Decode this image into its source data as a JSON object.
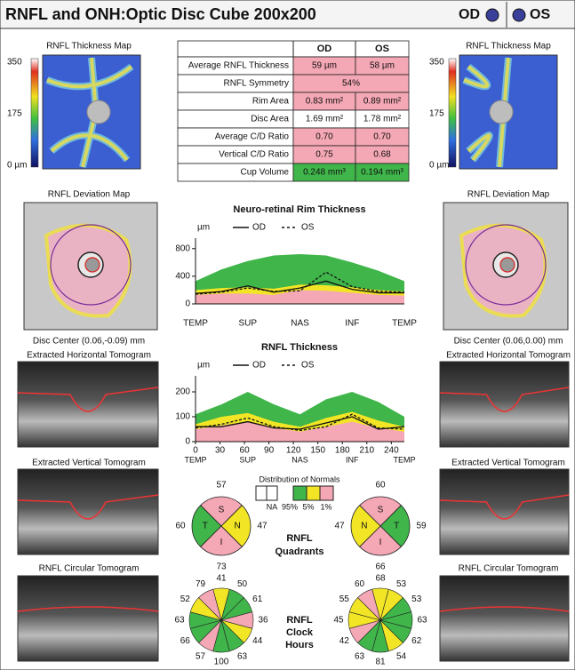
{
  "header": {
    "title": "RNFL and ONH:Optic Disc Cube 200x200",
    "right_eye": "OD",
    "left_eye": "OS"
  },
  "left_panel": {
    "thickness_map_title": "RNFL Thickness Map",
    "scale_labels": [
      "350",
      "175",
      "0 µm"
    ],
    "deviation_map_title": "RNFL Deviation Map",
    "disc_center": "Disc Center (0.06,-0.09) mm",
    "horizontal_tomogram_title": "Extracted Horizontal Tomogram",
    "vertical_tomogram_title": "Extracted Vertical Tomogram",
    "circular_tomogram_title": "RNFL Circular Tomogram"
  },
  "right_panel": {
    "thickness_map_title": "RNFL Thickness Map",
    "scale_labels": [
      "350",
      "175",
      "0 µm"
    ],
    "deviation_map_title": "RNFL Deviation Map",
    "disc_center": "Disc Center (0.06,0.00) mm",
    "horizontal_tomogram_title": "Extracted Horizontal Tomogram",
    "vertical_tomogram_title": "Extracted Vertical Tomogram",
    "circular_tomogram_title": "RNFL Circular Tomogram"
  },
  "table": {
    "columns": [
      "OD",
      "OS"
    ],
    "rows": [
      {
        "label": "Average RNFL Thickness",
        "cells": [
          "59 µm",
          "58 µm"
        ],
        "fills": [
          "#f4a7b4",
          "#f4a7b4"
        ]
      },
      {
        "label": "RNFL Symmetry",
        "cells": [
          "54%"
        ],
        "fills": [
          "#f4a7b4"
        ]
      },
      {
        "label": "Rim Area",
        "cells": [
          "0.83 mm²",
          "0.89 mm²"
        ],
        "fills": [
          "#f4a7b4",
          "#f4a7b4"
        ]
      },
      {
        "label": "Disc Area",
        "cells": [
          "1.69 mm²",
          "1.78 mm²"
        ],
        "fills": [
          "#ffffff",
          "#ffffff"
        ]
      },
      {
        "label": "Average C/D Ratio",
        "cells": [
          "0.70",
          "0.70"
        ],
        "fills": [
          "#f4a7b4",
          "#f4a7b4"
        ]
      },
      {
        "label": "Vertical C/D Ratio",
        "cells": [
          "0.75",
          "0.68"
        ],
        "fills": [
          "#f4a7b4",
          "#f4a7b4"
        ]
      },
      {
        "label": "Cup Volume",
        "cells": [
          "0.248 mm³",
          "0.194 mm³"
        ],
        "fills": [
          "#3fb54a",
          "#3fb54a"
        ]
      }
    ]
  },
  "rim_chart": {
    "title": "Neuro-retinal Rim Thickness",
    "unit": "µm",
    "categories": [
      "TEMP",
      null,
      "SUP",
      null,
      "NAS",
      null,
      "INF",
      null,
      "TEMP"
    ],
    "ylim": [
      0,
      900
    ],
    "yticks": [
      0,
      400,
      800
    ],
    "bands": [
      {
        "color": "#3fb54a",
        "values": [
          330,
          500,
          620,
          700,
          720,
          700,
          600,
          480,
          330
        ]
      },
      {
        "color": "#f2e526",
        "values": [
          200,
          230,
          240,
          220,
          280,
          270,
          240,
          200,
          180
        ]
      },
      {
        "color": "#f4a7b4",
        "values": [
          130,
          150,
          150,
          130,
          200,
          190,
          160,
          130,
          120
        ]
      }
    ],
    "series": [
      {
        "name": "OD",
        "color": "#111111",
        "dashed": false,
        "values": [
          150,
          180,
          260,
          170,
          230,
          330,
          210,
          160,
          160
        ]
      },
      {
        "name": "OS",
        "color": "#111111",
        "dashed": true,
        "values": [
          140,
          170,
          230,
          180,
          190,
          460,
          250,
          180,
          170
        ]
      }
    ]
  },
  "rnfl_chart": {
    "title": "RNFL Thickness",
    "unit": "µm",
    "x": [
      0,
      32,
      64,
      96,
      128,
      160,
      192,
      224,
      256
    ],
    "xlim": [
      0,
      256
    ],
    "xticks": [
      0,
      30,
      60,
      90,
      120,
      150,
      180,
      210,
      240
    ],
    "regions": [
      {
        "value": 0,
        "label": "TEMP"
      },
      {
        "value": 64,
        "label": "SUP"
      },
      {
        "value": 128,
        "label": "NAS"
      },
      {
        "value": 192,
        "label": "INF"
      },
      {
        "value": 256,
        "label": "TEMP"
      }
    ],
    "ylim": [
      0,
      250
    ],
    "yticks": [
      0,
      100,
      200
    ],
    "bands": [
      {
        "color": "#3fb54a",
        "values": [
          110,
          150,
          200,
          150,
          110,
          170,
          200,
          160,
          100
        ]
      },
      {
        "color": "#f2e526",
        "values": [
          70,
          100,
          115,
          80,
          60,
          95,
          120,
          85,
          60
        ]
      },
      {
        "color": "#f4a7b4",
        "values": [
          50,
          65,
          80,
          55,
          40,
          60,
          80,
          55,
          40
        ]
      }
    ],
    "series": [
      {
        "name": "OD",
        "color": "#111111",
        "dashed": false,
        "values": [
          60,
          60,
          80,
          55,
          50,
          75,
          100,
          50,
          60
        ]
      },
      {
        "name": "OS",
        "color": "#111111",
        "dashed": true,
        "values": [
          55,
          70,
          95,
          60,
          45,
          60,
          110,
          55,
          50
        ]
      }
    ]
  },
  "distribution": {
    "title": "Distribution of Normals",
    "items": [
      {
        "label": "NA",
        "color": "#ffffff"
      },
      {
        "label": "95%",
        "color": "#3fb54a"
      },
      {
        "label": "5%",
        "color": "#f2e526"
      },
      {
        "label": "1%",
        "color": "#f4a7b4"
      }
    ]
  },
  "quadrants": {
    "title_lines": [
      "RNFL",
      "Quadrants"
    ],
    "od": [
      {
        "sector": "S",
        "value": 57,
        "color": "#f4a7b4"
      },
      {
        "sector": "N",
        "value": 47,
        "color": "#f2e526"
      },
      {
        "sector": "I",
        "value": 73,
        "color": "#f4a7b4"
      },
      {
        "sector": "T",
        "value": 60,
        "color": "#3fb54a"
      }
    ],
    "os": [
      {
        "sector": "S",
        "value": 60,
        "color": "#f4a7b4"
      },
      {
        "sector": "T",
        "value": 59,
        "color": "#3fb54a"
      },
      {
        "sector": "I",
        "value": 66,
        "color": "#f4a7b4"
      },
      {
        "sector": "N",
        "value": 47,
        "color": "#f2e526"
      }
    ]
  },
  "clock_hours": {
    "title_lines": [
      "RNFL",
      "Clock",
      "Hours"
    ],
    "od": {
      "values": [
        41,
        50,
        61,
        36,
        44,
        63,
        100,
        57,
        66,
        63,
        52,
        79
      ],
      "colors": [
        "#f2e526",
        "#3fb54a",
        "#3fb54a",
        "#f4a7b4",
        "#f2e526",
        "#3fb54a",
        "#3fb54a",
        "#f4a7b4",
        "#3fb54a",
        "#3fb54a",
        "#f2e526",
        "#f4a7b4"
      ]
    },
    "os": {
      "values": [
        68,
        53,
        53,
        63,
        62,
        54,
        81,
        63,
        42,
        45,
        55,
        60
      ],
      "colors": [
        "#f2e526",
        "#f2e526",
        "#3fb54a",
        "#3fb54a",
        "#3fb54a",
        "#f2e526",
        "#3fb54a",
        "#3fb54a",
        "#f4a7b4",
        "#f2e526",
        "#f2e526",
        "#f4a7b4"
      ]
    }
  }
}
